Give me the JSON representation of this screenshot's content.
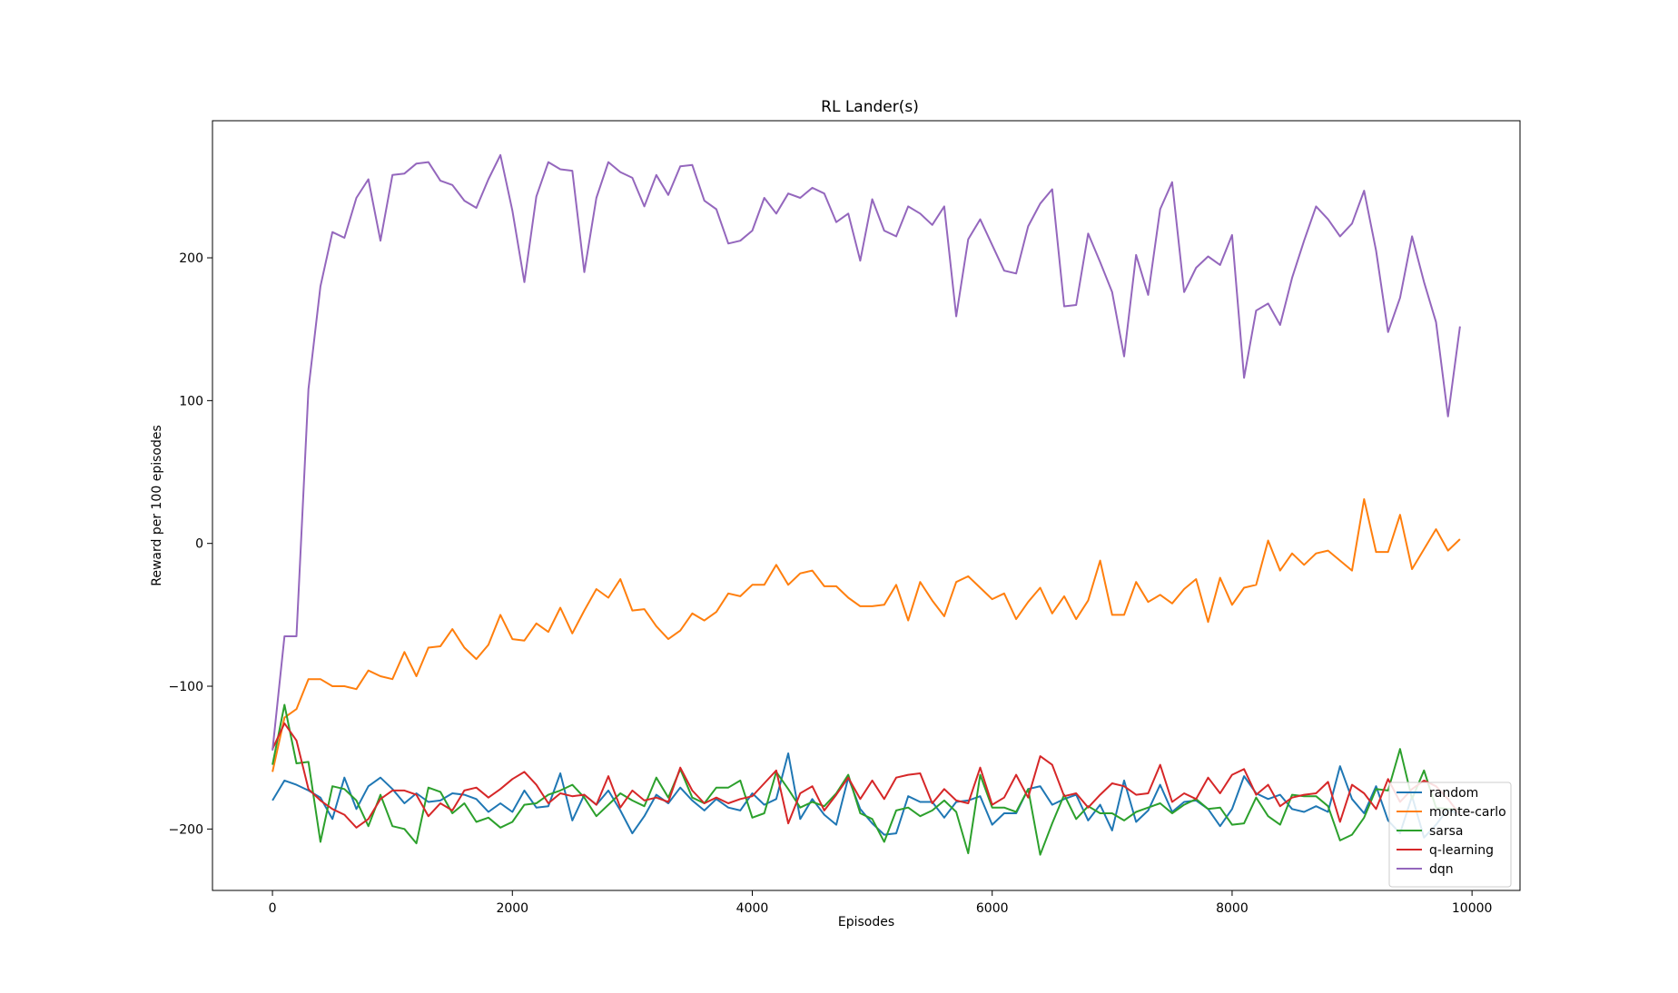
{
  "chart_data": {
    "type": "line",
    "title": "RL Lander(s)",
    "xlabel": "Episodes",
    "ylabel": "Reward per 100 episodes",
    "xlim": [
      -500,
      10400
    ],
    "ylim": [
      -243,
      296
    ],
    "xticks": [
      0,
      2000,
      4000,
      6000,
      8000,
      10000
    ],
    "yticks": [
      -200,
      -100,
      0,
      100,
      200
    ],
    "xtick_labels": [
      "0",
      "2000",
      "4000",
      "6000",
      "8000",
      "10000"
    ],
    "ytick_labels": [
      "−200",
      "−100",
      "0",
      "100",
      "200"
    ],
    "grid": false,
    "legend_position": "lower-right",
    "x": [
      0,
      100,
      200,
      300,
      400,
      500,
      600,
      700,
      800,
      900,
      1000,
      1100,
      1200,
      1300,
      1400,
      1500,
      1600,
      1700,
      1800,
      1900,
      2000,
      2100,
      2200,
      2300,
      2400,
      2500,
      2600,
      2700,
      2800,
      2900,
      3000,
      3100,
      3200,
      3300,
      3400,
      3500,
      3600,
      3700,
      3800,
      3900,
      4000,
      4100,
      4200,
      4300,
      4400,
      4500,
      4600,
      4700,
      4800,
      4900,
      5000,
      5100,
      5200,
      5300,
      5400,
      5500,
      5600,
      5700,
      5800,
      5900,
      6000,
      6100,
      6200,
      6300,
      6400,
      6500,
      6600,
      6700,
      6800,
      6900,
      7000,
      7100,
      7200,
      7300,
      7400,
      7500,
      7600,
      7700,
      7800,
      7900,
      8000,
      8100,
      8200,
      8300,
      8400,
      8500,
      8600,
      8700,
      8800,
      8900,
      9000,
      9100,
      9200,
      9300,
      9400,
      9500,
      9600,
      9700,
      9800,
      9900
    ],
    "series": [
      {
        "name": "random",
        "color": "#1f77b4",
        "values": [
          -180,
          -166,
          -169,
          -173,
          -178,
          -193,
          -164,
          -186,
          -170,
          -164,
          -172,
          -182,
          -175,
          -181,
          -180,
          -175,
          -176,
          -179,
          -188,
          -182,
          -188,
          -173,
          -185,
          -184,
          -161,
          -194,
          -176,
          -183,
          -173,
          -187,
          -203,
          -191,
          -176,
          -182,
          -171,
          -180,
          -187,
          -179,
          -185,
          -187,
          -175,
          -183,
          -179,
          -147,
          -193,
          -179,
          -190,
          -197,
          -164,
          -186,
          -196,
          -204,
          -203,
          -177,
          -181,
          -181,
          -192,
          -181,
          -180,
          -177,
          -197,
          -189,
          -189,
          -172,
          -170,
          -183,
          -179,
          -176,
          -194,
          -183,
          -201,
          -166,
          -195,
          -187,
          -169,
          -188,
          -181,
          -180,
          -186,
          -198,
          -186,
          -163,
          -175,
          -179,
          -176,
          -186,
          -188,
          -184,
          -188,
          -156,
          -179,
          -189,
          -170,
          -194,
          -203,
          -177,
          -206,
          -197,
          -186,
          -190
        ]
      },
      {
        "name": "monte-carlo",
        "color": "#ff7f0e",
        "values": [
          -160,
          -122,
          -116,
          -95,
          -95,
          -100,
          -100,
          -102,
          -89,
          -93,
          -95,
          -76,
          -93,
          -73,
          -72,
          -60,
          -73,
          -81,
          -71,
          -50,
          -67,
          -68,
          -56,
          -62,
          -45,
          -63,
          -47,
          -32,
          -38,
          -25,
          -47,
          -46,
          -58,
          -67,
          -61,
          -49,
          -54,
          -48,
          -35,
          -37,
          -29,
          -29,
          -15,
          -29,
          -21,
          -19,
          -30,
          -30,
          -38,
          -44,
          -44,
          -43,
          -29,
          -54,
          -27,
          -40,
          -51,
          -27,
          -23,
          -31,
          -39,
          -35,
          -53,
          -41,
          -31,
          -49,
          -37,
          -53,
          -40,
          -12,
          -50,
          -50,
          -27,
          -41,
          -36,
          -42,
          -32,
          -25,
          -55,
          -24,
          -43,
          -31,
          -29,
          2,
          -19,
          -7,
          -15,
          -7,
          -5,
          -12,
          -19,
          31,
          -6,
          -6,
          20,
          -18,
          -4,
          10,
          -5,
          3
        ]
      },
      {
        "name": "sarsa",
        "color": "#2ca02c",
        "values": [
          -155,
          -113,
          -154,
          -153,
          -209,
          -170,
          -172,
          -180,
          -198,
          -176,
          -198,
          -200,
          -210,
          -171,
          -174,
          -189,
          -182,
          -195,
          -192,
          -199,
          -195,
          -183,
          -182,
          -176,
          -173,
          -169,
          -178,
          -191,
          -183,
          -175,
          -180,
          -184,
          -164,
          -178,
          -158,
          -178,
          -182,
          -171,
          -171,
          -166,
          -192,
          -189,
          -160,
          -172,
          -185,
          -181,
          -184,
          -175,
          -162,
          -189,
          -193,
          -209,
          -187,
          -185,
          -191,
          -187,
          -180,
          -188,
          -217,
          -162,
          -185,
          -185,
          -188,
          -172,
          -218,
          -196,
          -176,
          -193,
          -184,
          -189,
          -189,
          -194,
          -188,
          -185,
          -182,
          -189,
          -183,
          -179,
          -186,
          -185,
          -197,
          -196,
          -178,
          -191,
          -197,
          -176,
          -177,
          -177,
          -184,
          -208,
          -204,
          -192,
          -172,
          -173,
          -144,
          -179,
          -159,
          -185,
          -186,
          -186
        ]
      },
      {
        "name": "q-learning",
        "color": "#d62728",
        "values": [
          -144,
          -126,
          -138,
          -172,
          -180,
          -186,
          -190,
          -199,
          -193,
          -179,
          -173,
          -173,
          -176,
          -191,
          -182,
          -187,
          -173,
          -171,
          -178,
          -172,
          -165,
          -160,
          -169,
          -182,
          -175,
          -177,
          -176,
          -183,
          -163,
          -185,
          -173,
          -180,
          -178,
          -181,
          -157,
          -173,
          -182,
          -178,
          -182,
          -179,
          -177,
          -168,
          -159,
          -196,
          -175,
          -170,
          -187,
          -176,
          -164,
          -179,
          -166,
          -179,
          -164,
          -162,
          -161,
          -182,
          -172,
          -180,
          -182,
          -157,
          -183,
          -178,
          -162,
          -178,
          -149,
          -155,
          -177,
          -175,
          -185,
          -176,
          -168,
          -170,
          -176,
          -175,
          -155,
          -181,
          -175,
          -179,
          -164,
          -175,
          -162,
          -158,
          -176,
          -169,
          -184,
          -178,
          -176,
          -175,
          -167,
          -195,
          -169,
          -175,
          -186,
          -165,
          -181,
          -172,
          -166,
          -170,
          -179,
          -190
        ]
      },
      {
        "name": "dqn",
        "color": "#9467bd",
        "values": [
          -145,
          -65,
          -65,
          108,
          180,
          218,
          214,
          242,
          255,
          212,
          258,
          259,
          266,
          267,
          254,
          251,
          240,
          235,
          255,
          272,
          233,
          183,
          243,
          267,
          262,
          261,
          190,
          242,
          267,
          260,
          256,
          236,
          258,
          244,
          264,
          265,
          240,
          234,
          210,
          212,
          219,
          242,
          231,
          245,
          242,
          249,
          245,
          225,
          231,
          198,
          241,
          219,
          215,
          236,
          231,
          223,
          236,
          159,
          213,
          227,
          209,
          191,
          189,
          222,
          238,
          248,
          166,
          167,
          217,
          197,
          176,
          131,
          202,
          174,
          234,
          253,
          176,
          193,
          201,
          195,
          216,
          116,
          163,
          168,
          153,
          186,
          212,
          236,
          227,
          215,
          224,
          247,
          205,
          148,
          172,
          215,
          183,
          155,
          89,
          152
        ]
      }
    ]
  }
}
